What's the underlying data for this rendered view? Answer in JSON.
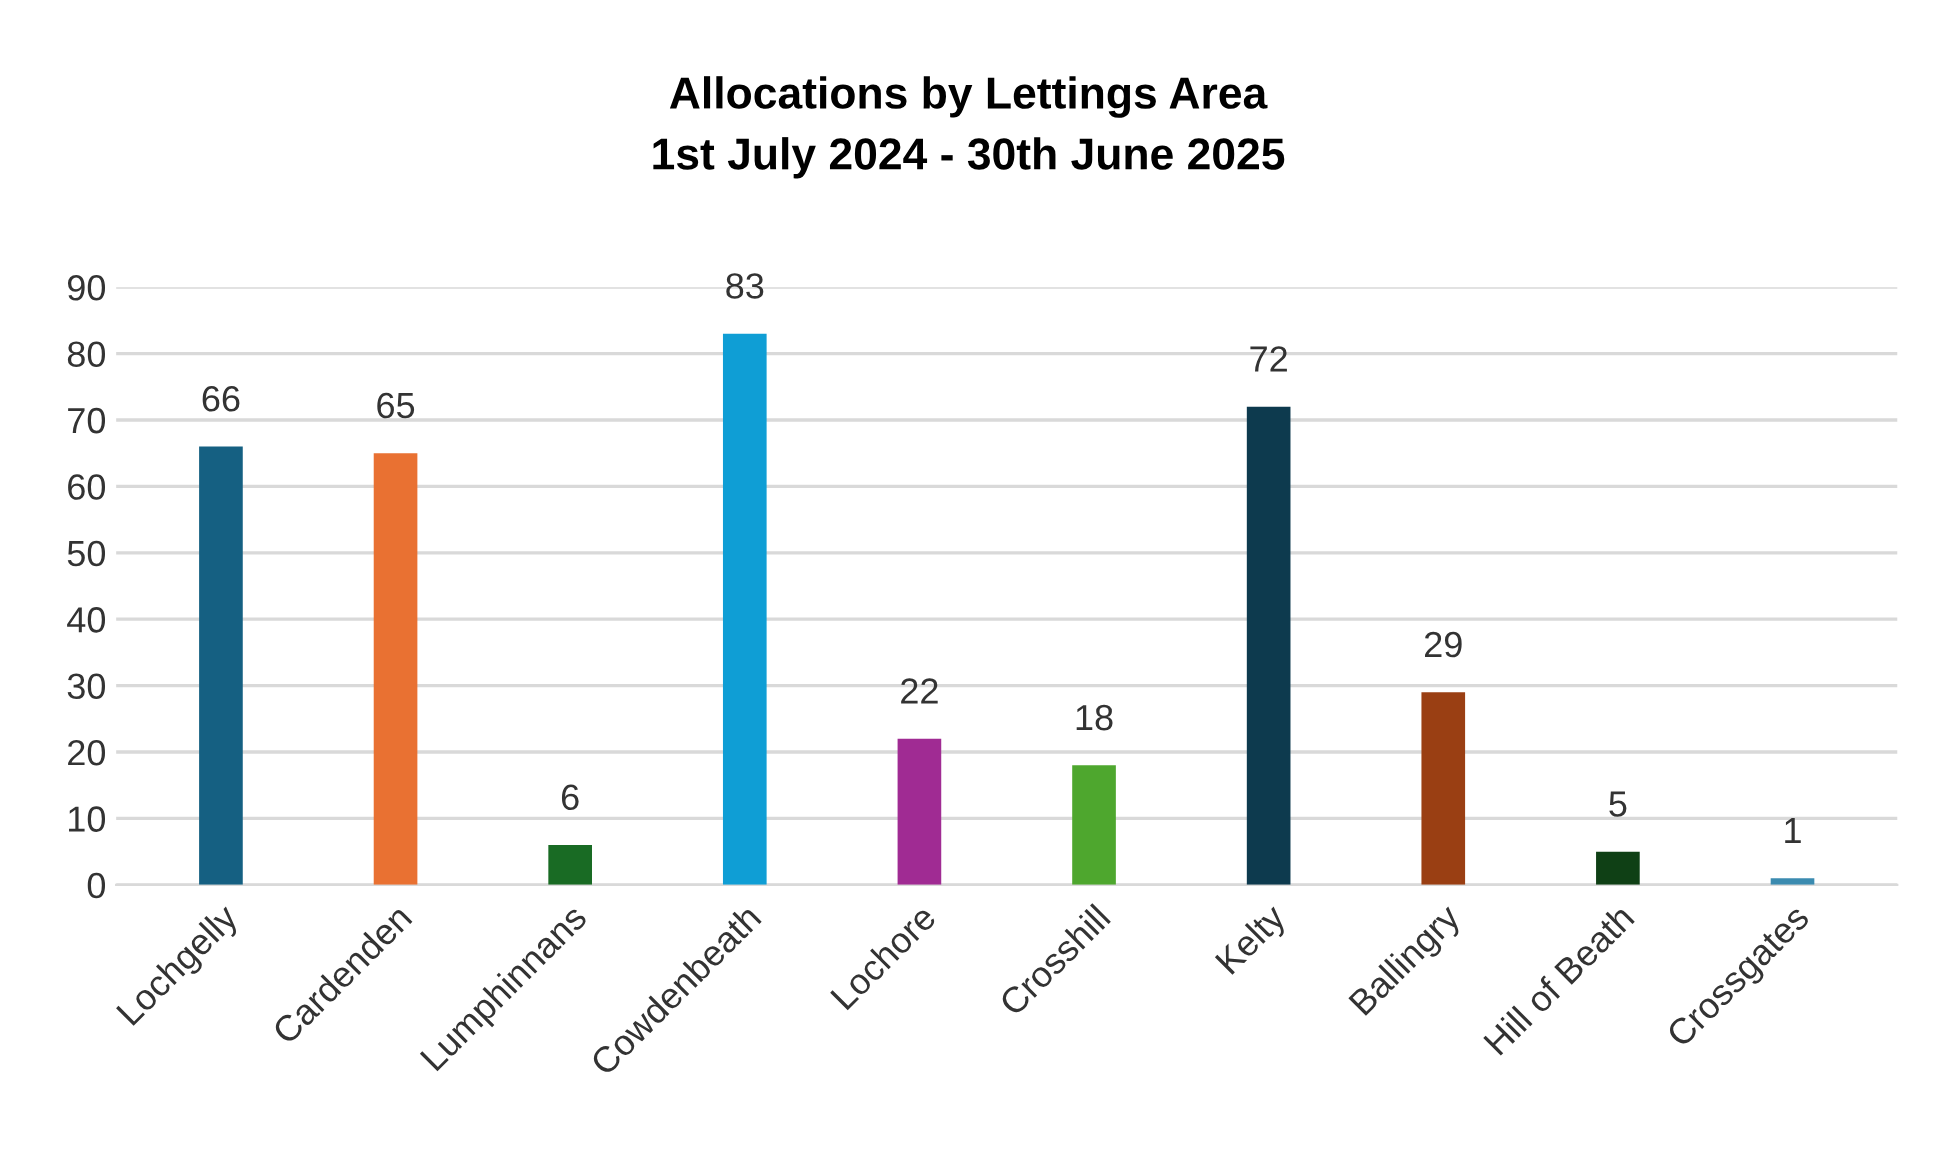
{
  "chart_data": {
    "type": "bar",
    "title": "Allocations by Lettings Area\n1st July 2024 - 30th June 2025",
    "categories": [
      "Lochgelly",
      "Cardenden",
      "Lumphinnans",
      "Cowdenbeath",
      "Lochore",
      "Crosshill",
      "Kelty",
      "Ballingry",
      "Hill of Beath",
      "Crossgates"
    ],
    "values": [
      66,
      65,
      6,
      83,
      22,
      18,
      72,
      29,
      5,
      1
    ],
    "colors": [
      "#156082",
      "#e97132",
      "#196b24",
      "#0f9ed5",
      "#a02b93",
      "#4ea72e",
      "#0d3a4e",
      "#9a3f13",
      "#0f4015",
      "#3b8bb0"
    ],
    "ylim": [
      0,
      90
    ],
    "yticks": [
      0,
      10,
      20,
      30,
      40,
      50,
      60,
      70,
      80,
      90
    ],
    "grid": "y",
    "data_labels": true
  }
}
